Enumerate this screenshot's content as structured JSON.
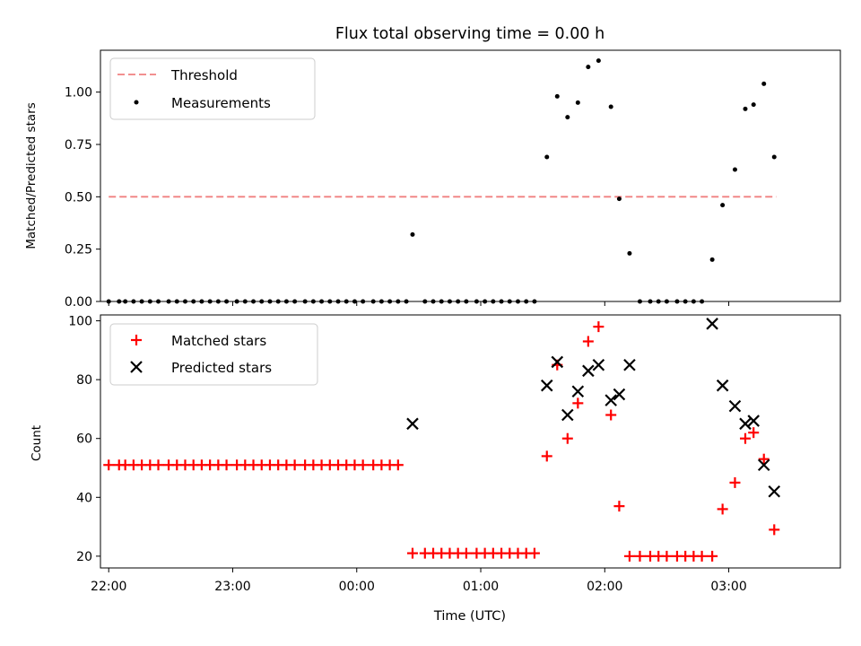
{
  "chart_data": [
    {
      "type": "scatter",
      "title": "Flux total observing time = 0.00 h",
      "ylabel": "Matched/Predicted stars",
      "xlabel": "",
      "xlim": [
        "21:56",
        "03:54"
      ],
      "ylim": [
        0,
        1.2
      ],
      "yticks": [
        "0.00",
        "0.25",
        "0.50",
        "0.75",
        "1.00"
      ],
      "legend": {
        "position": "upper-left",
        "entries": [
          "Threshold",
          "Measurements"
        ]
      },
      "threshold": {
        "name": "Threshold",
        "value": 0.5,
        "x_start": "22:00",
        "x_end": "03:23",
        "color": "#f08080"
      },
      "series": [
        {
          "name": "Measurements",
          "color": "#000000",
          "points": [
            [
              "22:00",
              0
            ],
            [
              "22:05",
              0
            ],
            [
              "22:08",
              0
            ],
            [
              "22:12",
              0
            ],
            [
              "22:16",
              0
            ],
            [
              "22:20",
              0
            ],
            [
              "22:24",
              0
            ],
            [
              "22:29",
              0
            ],
            [
              "22:33",
              0
            ],
            [
              "22:37",
              0
            ],
            [
              "22:41",
              0
            ],
            [
              "22:45",
              0
            ],
            [
              "22:49",
              0
            ],
            [
              "22:53",
              0
            ],
            [
              "22:57",
              0
            ],
            [
              "23:02",
              0
            ],
            [
              "23:06",
              0
            ],
            [
              "23:10",
              0
            ],
            [
              "23:14",
              0
            ],
            [
              "23:18",
              0
            ],
            [
              "23:22",
              0
            ],
            [
              "23:26",
              0
            ],
            [
              "23:30",
              0
            ],
            [
              "23:35",
              0
            ],
            [
              "23:39",
              0
            ],
            [
              "23:43",
              0
            ],
            [
              "23:47",
              0
            ],
            [
              "23:51",
              0
            ],
            [
              "23:55",
              0
            ],
            [
              "23:59",
              0
            ],
            [
              "00:03",
              0
            ],
            [
              "00:08",
              0
            ],
            [
              "00:12",
              0
            ],
            [
              "00:16",
              0
            ],
            [
              "00:20",
              0
            ],
            [
              "00:24",
              0
            ],
            [
              "00:27",
              0.32
            ],
            [
              "00:33",
              0
            ],
            [
              "00:37",
              0
            ],
            [
              "00:41",
              0
            ],
            [
              "00:45",
              0
            ],
            [
              "00:49",
              0
            ],
            [
              "00:53",
              0
            ],
            [
              "00:58",
              0
            ],
            [
              "01:02",
              0
            ],
            [
              "01:06",
              0
            ],
            [
              "01:10",
              0
            ],
            [
              "01:14",
              0
            ],
            [
              "01:18",
              0
            ],
            [
              "01:22",
              0
            ],
            [
              "01:26",
              0
            ],
            [
              "01:32",
              0.69
            ],
            [
              "01:37",
              0.98
            ],
            [
              "01:42",
              0.88
            ],
            [
              "01:47",
              0.95
            ],
            [
              "01:52",
              1.12
            ],
            [
              "01:57",
              1.15
            ],
            [
              "02:03",
              0.93
            ],
            [
              "02:07",
              0.49
            ],
            [
              "02:12",
              0.23
            ],
            [
              "02:17",
              0
            ],
            [
              "02:22",
              0
            ],
            [
              "02:26",
              0
            ],
            [
              "02:30",
              0
            ],
            [
              "02:35",
              0
            ],
            [
              "02:39",
              0
            ],
            [
              "02:43",
              0
            ],
            [
              "02:47",
              0
            ],
            [
              "02:52",
              0.2
            ],
            [
              "02:57",
              0.46
            ],
            [
              "03:03",
              0.63
            ],
            [
              "03:08",
              0.92
            ],
            [
              "03:12",
              0.94
            ],
            [
              "03:17",
              1.04
            ],
            [
              "03:22",
              0.69
            ]
          ]
        }
      ]
    },
    {
      "type": "scatter",
      "title": "",
      "ylabel": "Count",
      "xlabel": "Time (UTC)",
      "xlim": [
        "21:56",
        "03:54"
      ],
      "ylim": [
        16,
        102
      ],
      "yticks": [
        "20",
        "40",
        "60",
        "80",
        "100"
      ],
      "xticks": [
        "22:00",
        "23:00",
        "00:00",
        "01:00",
        "02:00",
        "03:00"
      ],
      "legend": {
        "position": "upper-left",
        "entries": [
          "Matched stars",
          "Predicted stars"
        ]
      },
      "series": [
        {
          "name": "Matched stars",
          "marker": "plus",
          "color": "#ff0000",
          "points": [
            [
              "22:00",
              51
            ],
            [
              "22:05",
              51
            ],
            [
              "22:08",
              51
            ],
            [
              "22:12",
              51
            ],
            [
              "22:16",
              51
            ],
            [
              "22:20",
              51
            ],
            [
              "22:24",
              51
            ],
            [
              "22:29",
              51
            ],
            [
              "22:33",
              51
            ],
            [
              "22:37",
              51
            ],
            [
              "22:41",
              51
            ],
            [
              "22:45",
              51
            ],
            [
              "22:49",
              51
            ],
            [
              "22:53",
              51
            ],
            [
              "22:57",
              51
            ],
            [
              "23:02",
              51
            ],
            [
              "23:06",
              51
            ],
            [
              "23:10",
              51
            ],
            [
              "23:14",
              51
            ],
            [
              "23:18",
              51
            ],
            [
              "23:22",
              51
            ],
            [
              "23:26",
              51
            ],
            [
              "23:30",
              51
            ],
            [
              "23:35",
              51
            ],
            [
              "23:39",
              51
            ],
            [
              "23:43",
              51
            ],
            [
              "23:47",
              51
            ],
            [
              "23:51",
              51
            ],
            [
              "23:55",
              51
            ],
            [
              "23:59",
              51
            ],
            [
              "00:03",
              51
            ],
            [
              "00:08",
              51
            ],
            [
              "00:12",
              51
            ],
            [
              "00:16",
              51
            ],
            [
              "00:20",
              51
            ],
            [
              "00:27",
              21
            ],
            [
              "00:33",
              21
            ],
            [
              "00:37",
              21
            ],
            [
              "00:41",
              21
            ],
            [
              "00:45",
              21
            ],
            [
              "00:49",
              21
            ],
            [
              "00:53",
              21
            ],
            [
              "00:58",
              21
            ],
            [
              "01:02",
              21
            ],
            [
              "01:06",
              21
            ],
            [
              "01:10",
              21
            ],
            [
              "01:14",
              21
            ],
            [
              "01:18",
              21
            ],
            [
              "01:22",
              21
            ],
            [
              "01:26",
              21
            ],
            [
              "01:32",
              54
            ],
            [
              "01:37",
              85
            ],
            [
              "01:42",
              60
            ],
            [
              "01:47",
              72
            ],
            [
              "01:52",
              93
            ],
            [
              "01:57",
              98
            ],
            [
              "02:03",
              68
            ],
            [
              "02:07",
              37
            ],
            [
              "02:12",
              20
            ],
            [
              "02:17",
              20
            ],
            [
              "02:22",
              20
            ],
            [
              "02:26",
              20
            ],
            [
              "02:30",
              20
            ],
            [
              "02:35",
              20
            ],
            [
              "02:39",
              20
            ],
            [
              "02:43",
              20
            ],
            [
              "02:47",
              20
            ],
            [
              "02:52",
              20
            ],
            [
              "02:57",
              36
            ],
            [
              "03:03",
              45
            ],
            [
              "03:08",
              60
            ],
            [
              "03:12",
              62
            ],
            [
              "03:17",
              53
            ],
            [
              "03:22",
              29
            ]
          ]
        },
        {
          "name": "Predicted stars",
          "marker": "x",
          "color": "#000000",
          "points": [
            [
              "00:27",
              65
            ],
            [
              "01:32",
              78
            ],
            [
              "01:37",
              86
            ],
            [
              "01:42",
              68
            ],
            [
              "01:47",
              76
            ],
            [
              "01:52",
              83
            ],
            [
              "01:57",
              85
            ],
            [
              "02:03",
              73
            ],
            [
              "02:07",
              75
            ],
            [
              "02:12",
              85
            ],
            [
              "02:52",
              99
            ],
            [
              "02:57",
              78
            ],
            [
              "03:03",
              71
            ],
            [
              "03:08",
              65
            ],
            [
              "03:12",
              66
            ],
            [
              "03:17",
              51
            ],
            [
              "03:22",
              42
            ]
          ]
        }
      ]
    }
  ]
}
